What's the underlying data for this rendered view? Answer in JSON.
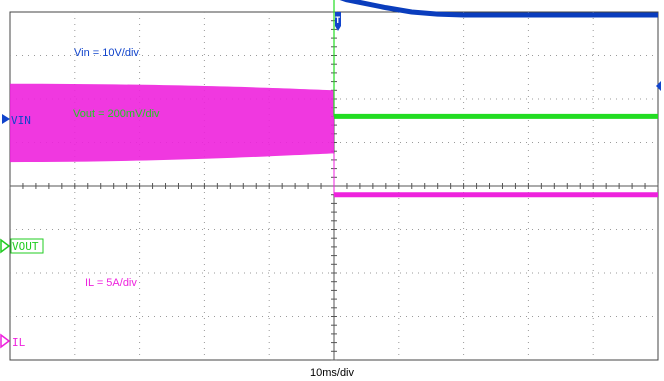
{
  "chart_data": {
    "type": "line",
    "title": "",
    "xlabel": "10ms/div",
    "ylabel": "",
    "grid": true,
    "x_divisions": 10,
    "x_unit": "ms",
    "x_range": [
      0,
      100
    ],
    "trigger_x": 50,
    "trigger_label": "T",
    "series": [
      {
        "name": "VIN",
        "label": "Vin = 10V/div",
        "color": "#0a3dbd",
        "x": [
          0,
          30,
          36,
          40,
          44,
          48,
          50,
          52,
          54,
          58,
          62,
          66,
          70,
          100
        ],
        "y_div": [
          5.7,
          5.7,
          5.45,
          5.2,
          4.95,
          4.6,
          4.38,
          4.28,
          4.22,
          4.1,
          4.0,
          3.95,
          3.93,
          3.93
        ]
      },
      {
        "name": "VOUT",
        "label": "Vout = 200mV/div",
        "color": "#22dd22",
        "x": [
          0,
          50,
          50,
          100
        ],
        "y_div": [
          4.85,
          4.85,
          1.6,
          1.6
        ]
      },
      {
        "name": "IL",
        "label": "IL = 5A/div",
        "color": "#ee22dd",
        "x": [
          0,
          100
        ],
        "y_div": [
          -0.2,
          -0.2
        ]
      }
    ],
    "il_ripple_band_div": {
      "x": [
        0,
        50
      ],
      "top": [
        2.35,
        2.2
      ],
      "bottom": [
        0.55,
        0.75
      ]
    }
  },
  "markers": {
    "vin": "VIN",
    "vout": "VOUT",
    "il": "IL"
  }
}
